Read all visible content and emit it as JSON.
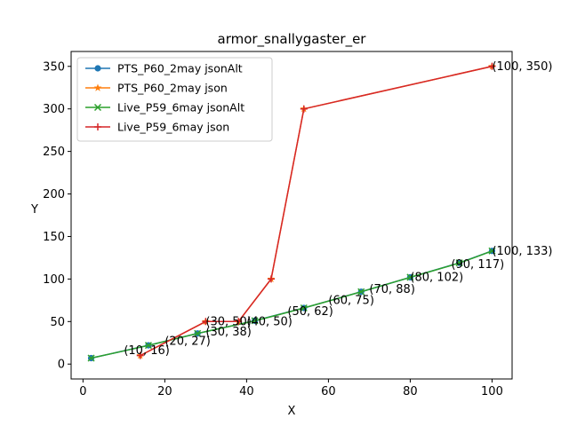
{
  "chart_data": {
    "type": "line",
    "title": "armor_snallygaster_er",
    "xlabel": "X",
    "ylabel": "Y",
    "xlim": [
      -2.9,
      104.9
    ],
    "ylim": [
      -17.5,
      367.5
    ],
    "xticks": [
      0,
      20,
      40,
      60,
      80,
      100
    ],
    "yticks": [
      0,
      50,
      100,
      150,
      200,
      250,
      300,
      350
    ],
    "grid": false,
    "legend_position": "top-left",
    "series": [
      {
        "name": "PTS_P60_2may jsonAlt",
        "color": "#1f77b4",
        "marker": "circle",
        "x": [
          2,
          16,
          28,
          42,
          54,
          68,
          80,
          92,
          100
        ],
        "y": [
          7,
          22,
          36,
          51,
          66,
          85,
          102,
          119,
          133
        ]
      },
      {
        "name": "PTS_P60_2may json",
        "color": "#ff7f0e",
        "marker": "star",
        "x": [
          14,
          30,
          38,
          46,
          54,
          100
        ],
        "y": [
          10,
          50,
          50,
          100,
          300,
          350
        ]
      },
      {
        "name": "Live_P59_6may jsonAlt",
        "color": "#2ca02c",
        "marker": "x",
        "x": [
          2,
          16,
          28,
          42,
          54,
          68,
          80,
          92,
          100
        ],
        "y": [
          7,
          22,
          36,
          51,
          66,
          85,
          102,
          119,
          133
        ]
      },
      {
        "name": "Live_P59_6may json",
        "color": "#d62728",
        "marker": "plus",
        "x": [
          14,
          30,
          38,
          46,
          54,
          100
        ],
        "y": [
          10,
          50,
          50,
          100,
          300,
          350
        ]
      }
    ],
    "annotations": [
      {
        "text": "(10, 16)",
        "x": 10,
        "y": 16
      },
      {
        "text": "(20, 27)",
        "x": 20,
        "y": 27
      },
      {
        "text": "(30, 38)",
        "x": 30,
        "y": 38
      },
      {
        "text": "(30, 50)",
        "x": 30,
        "y": 50
      },
      {
        "text": "(40, 50)",
        "x": 40,
        "y": 50
      },
      {
        "text": "(50, 62)",
        "x": 50,
        "y": 62
      },
      {
        "text": "(60, 75)",
        "x": 60,
        "y": 75
      },
      {
        "text": "(70, 88)",
        "x": 70,
        "y": 88
      },
      {
        "text": "(80, 102)",
        "x": 80,
        "y": 102
      },
      {
        "text": "(90, 117)",
        "x": 90,
        "y": 117
      },
      {
        "text": "(100, 133)",
        "x": 100,
        "y": 133
      },
      {
        "text": "(100, 350)",
        "x": 100,
        "y": 350
      }
    ]
  }
}
